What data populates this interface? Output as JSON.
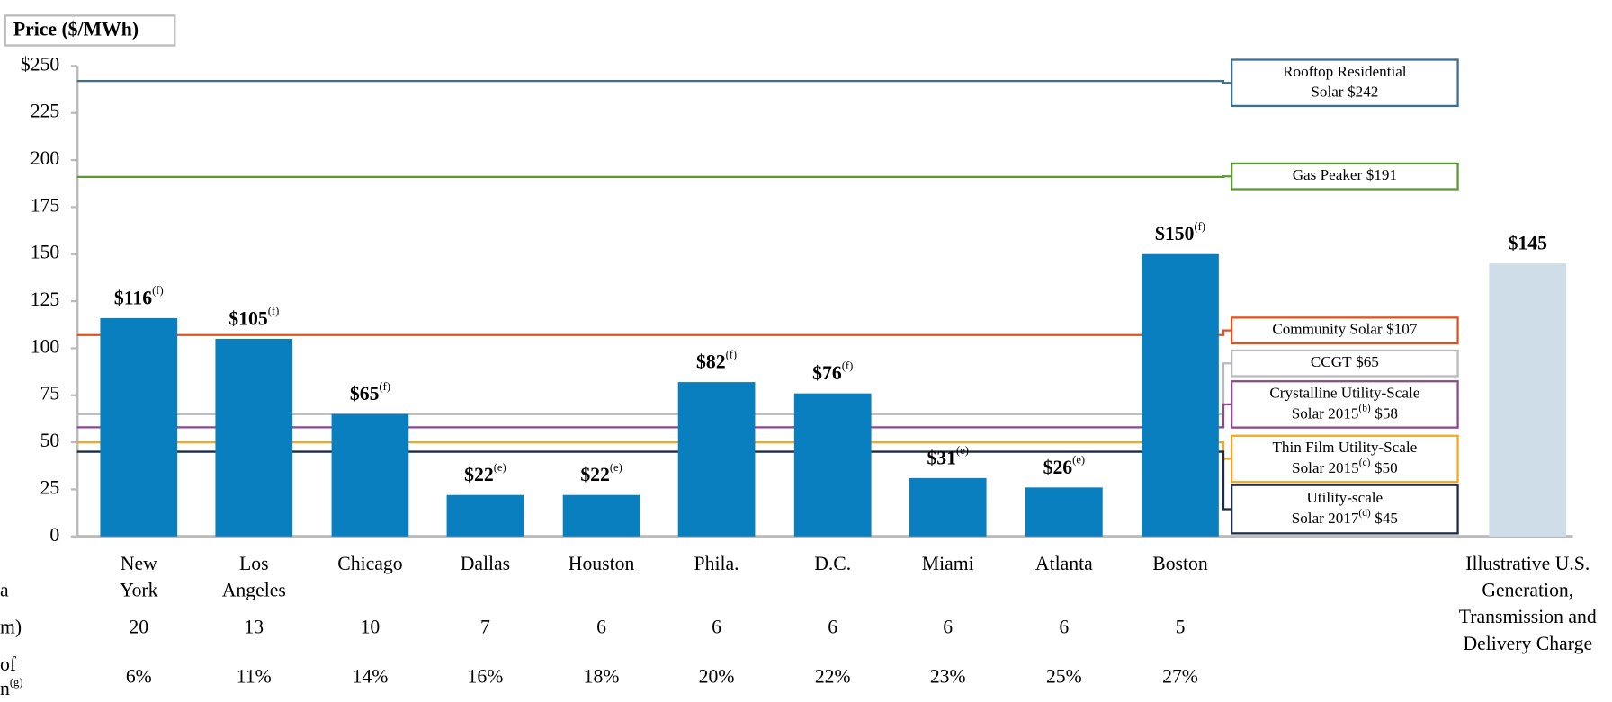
{
  "chart_data": {
    "type": "bar",
    "y_axis_title": "Price ($/MWh)",
    "categories": [
      [
        "New",
        "York"
      ],
      [
        "Los",
        "Angeles"
      ],
      [
        "Chicago"
      ],
      [
        "Dallas"
      ],
      [
        "Houston"
      ],
      [
        "Phila."
      ],
      [
        "D.C."
      ],
      [
        "Miami"
      ],
      [
        "Atlanta"
      ],
      [
        "Boston"
      ],
      [
        "Illustrative U.S.",
        "Generation,",
        "Transmission and",
        "Delivery Charge"
      ]
    ],
    "values": [
      116,
      105,
      65,
      22,
      22,
      82,
      76,
      31,
      26,
      150,
      145
    ],
    "value_labels": [
      "$116",
      "$105",
      "$65",
      "$22",
      "$22",
      "$82",
      "$76",
      "$31",
      "$26",
      "$150",
      "$145"
    ],
    "value_notes": [
      "(f)",
      "(f)",
      "(f)",
      "(e)",
      "(e)",
      "(f)",
      "(f)",
      "(e)",
      "(e)",
      "(f)",
      null
    ],
    "colors": [
      "#0a7fc0",
      "#0a7fc0",
      "#0a7fc0",
      "#0a7fc0",
      "#0a7fc0",
      "#0a7fc0",
      "#0a7fc0",
      "#0a7fc0",
      "#0a7fc0",
      "#0a7fc0",
      "#cfdde8"
    ],
    "ylim": [
      0,
      250
    ],
    "yticks": [
      0,
      25,
      50,
      75,
      100,
      125,
      150,
      175,
      200,
      225,
      {
        "value": 250,
        "label": "$250"
      }
    ],
    "reference_lines": [
      {
        "name": [
          "Rooftop Residential",
          "Solar"
        ],
        "note": null,
        "value": 242,
        "value_label": "$242",
        "color": "#3a6f96"
      },
      {
        "name": [
          "Gas Peaker"
        ],
        "note": null,
        "value": 191,
        "value_label": "$191",
        "color": "#5b9a2e"
      },
      {
        "name": [
          "Community Solar"
        ],
        "note": null,
        "value": 107,
        "value_label": "$107",
        "color": "#e2531c"
      },
      {
        "name": [
          "CCGT"
        ],
        "note": null,
        "value": 65,
        "value_label": "$65",
        "color": "#b8babd"
      },
      {
        "name": [
          "Crystalline Utility-Scale",
          "Solar 2015"
        ],
        "note": "(b)",
        "value": 58,
        "value_label": "$58",
        "color": "#8a4a8c"
      },
      {
        "name": [
          "Thin Film Utility-Scale",
          "Solar 2015"
        ],
        "note": "(c)",
        "value": 50,
        "value_label": "$50",
        "color": "#f5a623"
      },
      {
        "name": [
          "Utility-scale",
          "Solar 2017"
        ],
        "note": "(d)",
        "value": 45,
        "value_label": "$45",
        "color": "#1f2a44"
      }
    ],
    "category_row_label": "a",
    "rows": [
      {
        "label": [
          "m)"
        ],
        "values": [
          20,
          13,
          10,
          7,
          6,
          6,
          6,
          6,
          6,
          5
        ]
      },
      {
        "label": [
          "of",
          "n"
        ],
        "note": "(g)",
        "values": [
          "6%",
          "11%",
          "14%",
          "16%",
          "18%",
          "20%",
          "22%",
          "23%",
          "25%",
          "27%"
        ]
      }
    ]
  }
}
